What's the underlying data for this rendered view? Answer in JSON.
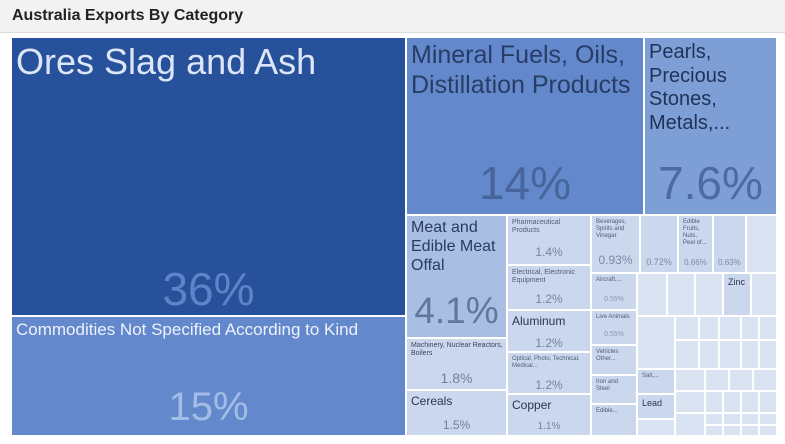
{
  "title": "Australia Exports By Category",
  "colors": {
    "dark": "#27519b",
    "mid": "#6388cc",
    "mid2": "#7d9fd6",
    "light": "#a8bfe3",
    "pale": "#cad7ec",
    "paler": "#d9e3f2"
  },
  "chart_data": {
    "type": "treemap",
    "title": "Australia Exports By Category",
    "items": [
      {
        "label": "Ores Slag and Ash",
        "pct": "36%",
        "value": 36
      },
      {
        "label": "Commodities Not Specified According to Kind",
        "pct": "15%",
        "value": 15
      },
      {
        "label": "Mineral Fuels, Oils, Distillation Products",
        "pct": "14%",
        "value": 14
      },
      {
        "label": "Pearls, Precious Stones, Metals,...",
        "pct": "7.6%",
        "value": 7.6
      },
      {
        "label": "Meat and Edible Meat Offal",
        "pct": "4.1%",
        "value": 4.1
      },
      {
        "label": "Machinery, Nuclear Reactors, Boilers",
        "pct": "1.8%",
        "value": 1.8
      },
      {
        "label": "Cereals",
        "pct": "1.5%",
        "value": 1.5
      },
      {
        "label": "Pharmaceutical Products",
        "pct": "1.4%",
        "value": 1.4
      },
      {
        "label": "Electrical, Electronic Equipment",
        "pct": "1.2%",
        "value": 1.2
      },
      {
        "label": "Aluminum",
        "pct": "1.2%",
        "value": 1.2
      },
      {
        "label": "Optical, Photo, Technical, Medical...",
        "pct": "1.2%",
        "value": 1.2
      },
      {
        "label": "Copper",
        "pct": "1.1%",
        "value": 1.1
      },
      {
        "label": "Beverages, Spirits and Vinegar",
        "pct": "0.93%",
        "value": 0.93
      },
      {
        "label": "",
        "pct": "0.72%",
        "value": 0.72
      },
      {
        "label": "Edible Fruits, Nuts, Peel of...",
        "pct": "0.66%",
        "value": 0.66
      },
      {
        "label": "",
        "pct": "0.63%",
        "value": 0.63
      },
      {
        "label": "Aircraft,...",
        "pct": "0.55%",
        "value": 0.55
      },
      {
        "label": "Live Animals",
        "pct": "0.55%",
        "value": 0.55
      },
      {
        "label": "Vehicles Other...",
        "pct": "",
        "value": null
      },
      {
        "label": "Iron and Steel",
        "pct": "",
        "value": null
      },
      {
        "label": "Edible...",
        "pct": "",
        "value": null
      },
      {
        "label": "Salt,...",
        "pct": "",
        "value": null
      },
      {
        "label": "Lead",
        "pct": "",
        "value": null
      },
      {
        "label": "Zinc",
        "pct": "",
        "value": null
      }
    ]
  }
}
